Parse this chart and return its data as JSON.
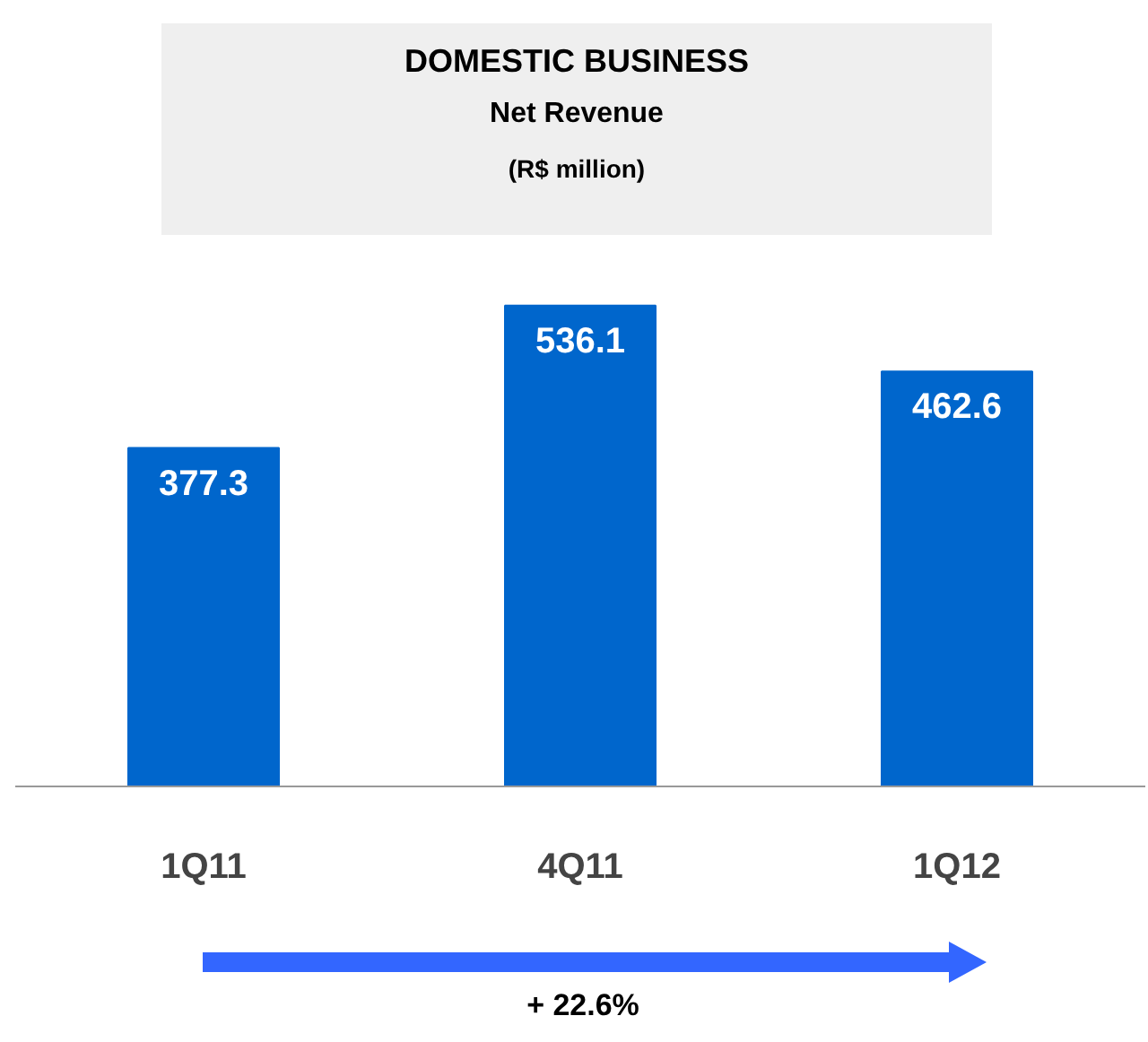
{
  "chart_data": {
    "type": "bar",
    "title": "DOMESTIC BUSINESS",
    "subtitle": "Net Revenue",
    "ylabel": "(R$ million)",
    "categories": [
      "1Q11",
      "4Q11",
      "1Q12"
    ],
    "values": [
      377.3,
      536.1,
      462.6
    ],
    "color": "#0066cc",
    "data_labels": true,
    "annotations": [
      "+ 22.6%"
    ]
  }
}
